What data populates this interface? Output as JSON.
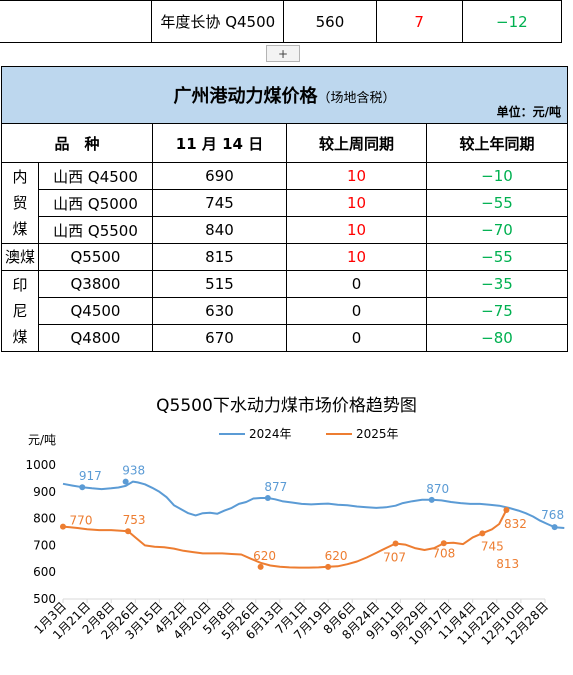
{
  "top_row": {
    "name": "年度长协 Q4500",
    "price": "560",
    "wow": "7",
    "yoy": "−12"
  },
  "expand_button": "+",
  "table": {
    "title": "广州港动力煤价格",
    "subtitle": "（场地含税）",
    "unit": "单位：元/吨",
    "headers": {
      "variety": "品　种",
      "date": "11 月 14 日",
      "wow": "较上周同期",
      "yoy": "较上年同期"
    },
    "groups": [
      {
        "label": [
          "内",
          "贸",
          "煤"
        ],
        "rows": [
          {
            "name": "山西 Q4500",
            "price": "690",
            "wow": "10",
            "yoy": "−10"
          },
          {
            "name": "山西 Q5000",
            "price": "745",
            "wow": "10",
            "yoy": "−55"
          },
          {
            "name": "山西 Q5500",
            "price": "840",
            "wow": "10",
            "yoy": "−70"
          }
        ]
      },
      {
        "label": [
          "澳煤"
        ],
        "rows": [
          {
            "name": "Q5500",
            "price": "815",
            "wow": "10",
            "yoy": "−55"
          }
        ]
      },
      {
        "label": [
          "印",
          "尼",
          "煤"
        ],
        "rows": [
          {
            "name": "Q3800",
            "price": "515",
            "wow": "0",
            "yoy": "−35"
          },
          {
            "name": "Q4500",
            "price": "630",
            "wow": "0",
            "yoy": "−75"
          },
          {
            "name": "Q4800",
            "price": "670",
            "wow": "0",
            "yoy": "−80"
          }
        ]
      }
    ]
  },
  "chart_data": {
    "type": "line",
    "title": "Q5500下水动力煤市场价格趋势图",
    "ylabel": "元/吨",
    "ylim": [
      500,
      1000
    ],
    "yticks": [
      500,
      600,
      700,
      800,
      900,
      1000
    ],
    "grid": false,
    "legend": "top-center",
    "x_labels": [
      "1月3日",
      "1月21日",
      "2月8日",
      "2月26日",
      "3月15日",
      "4月2日",
      "4月20日",
      "5月8日",
      "5月26日",
      "6月13日",
      "7月1日",
      "7月19日",
      "8月6日",
      "8月24日",
      "9月11日",
      "9月29日",
      "10月17日",
      "11月4日",
      "11月22日",
      "12月10日",
      "12月28日"
    ],
    "colors": {
      "2024年": "#5b9bd5",
      "2025年": "#ed7d31"
    },
    "series": [
      {
        "name": "2024年",
        "x": [
          0,
          0.4,
          0.8,
          1.2,
          1.6,
          2.0,
          2.3,
          2.6,
          2.9,
          3.1,
          3.4,
          3.7,
          4.0,
          4.3,
          4.6,
          4.9,
          5.2,
          5.5,
          5.8,
          6.1,
          6.4,
          6.7,
          7.0,
          7.3,
          7.6,
          7.9,
          8.2,
          8.5,
          8.8,
          9.1,
          9.5,
          9.9,
          10.3,
          10.7,
          11.0,
          11.4,
          11.8,
          12.2,
          12.6,
          13.0,
          13.4,
          13.8,
          14.1,
          14.5,
          14.9,
          15.3,
          15.7,
          16.1,
          16.5,
          16.9,
          17.3,
          17.7,
          18.1,
          18.5,
          18.9,
          19.2,
          19.5,
          19.8,
          20.1,
          20.4,
          20.8
        ],
        "values": [
          930,
          923,
          917,
          913,
          910,
          913,
          916,
          922,
          938,
          935,
          928,
          915,
          900,
          880,
          850,
          835,
          820,
          812,
          820,
          822,
          818,
          830,
          840,
          855,
          862,
          875,
          877,
          877,
          872,
          865,
          860,
          855,
          853,
          855,
          856,
          852,
          850,
          845,
          842,
          840,
          842,
          848,
          858,
          865,
          870,
          870,
          868,
          862,
          858,
          855,
          855,
          852,
          848,
          840,
          830,
          820,
          808,
          792,
          780,
          768,
          765
        ]
      },
      {
        "name": "2025年",
        "x": [
          0,
          0.3,
          0.6,
          1.0,
          1.5,
          2.0,
          2.4,
          2.7,
          3.0,
          3.4,
          3.8,
          4.2,
          4.6,
          5.0,
          5.4,
          5.8,
          6.2,
          6.6,
          7.0,
          7.4,
          7.8,
          8.2,
          8.6,
          9.0,
          9.4,
          9.8,
          10.2,
          10.6,
          11.0,
          11.4,
          11.8,
          12.2,
          12.6,
          13.0,
          13.4,
          13.8,
          14.2,
          14.6,
          15.0,
          15.4,
          15.8,
          16.2,
          16.6,
          17.0,
          17.4,
          17.8,
          18.1,
          18.4
        ],
        "values": [
          770,
          768,
          765,
          760,
          757,
          757,
          755,
          753,
          730,
          700,
          695,
          693,
          688,
          680,
          675,
          670,
          670,
          670,
          668,
          666,
          650,
          635,
          625,
          620,
          618,
          617,
          617,
          618,
          620,
          622,
          630,
          640,
          655,
          672,
          690,
          707,
          703,
          690,
          683,
          690,
          708,
          710,
          705,
          730,
          745,
          760,
          780,
          832
        ]
      }
    ],
    "annotations_2024": [
      {
        "x": 0.8,
        "y": 917,
        "text": "917"
      },
      {
        "x": 2.6,
        "y": 938,
        "text": "938"
      },
      {
        "x": 8.5,
        "y": 877,
        "text": "877"
      },
      {
        "x": 15.3,
        "y": 870,
        "text": "870"
      },
      {
        "x": 20.4,
        "y": 768,
        "text": "768"
      }
    ],
    "annotations_2025": [
      {
        "x": 0,
        "y": 770,
        "text": "770"
      },
      {
        "x": 2.7,
        "y": 753,
        "text": "753"
      },
      {
        "x": 8.2,
        "y": 620,
        "text": "620"
      },
      {
        "x": 11.0,
        "y": 620,
        "text": "620"
      },
      {
        "x": 13.8,
        "y": 707,
        "text": "707"
      },
      {
        "x": 15.8,
        "y": 708,
        "text": "708"
      },
      {
        "x": 17.4,
        "y": 745,
        "text": "745"
      },
      {
        "x": 18.4,
        "y": 832,
        "text": "832"
      }
    ],
    "extra_label": "813"
  }
}
